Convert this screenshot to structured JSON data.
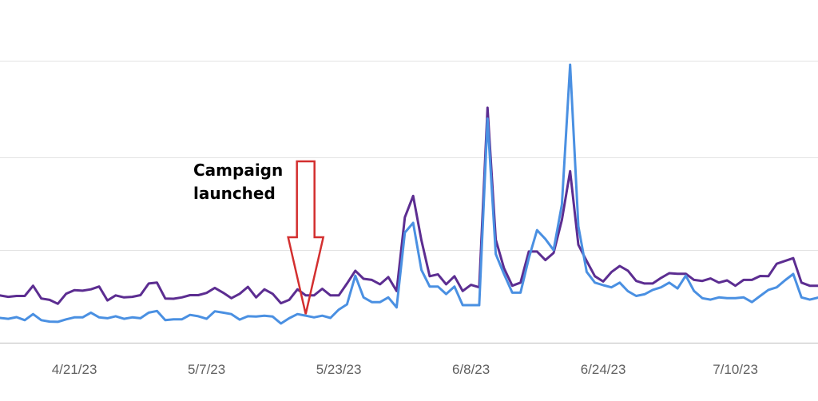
{
  "chart_data": {
    "type": "line",
    "title": "",
    "xlabel": "",
    "ylabel": "",
    "grid": true,
    "legend": "none",
    "x_ticks": [
      "4/21/23",
      "5/7/23",
      "5/23/23",
      "6/8/23",
      "6/24/23",
      "7/10/23"
    ],
    "x_tick_indices": [
      9,
      25,
      41,
      57,
      73,
      89
    ],
    "ylim": [
      0,
      100
    ],
    "annotation": {
      "lines": [
        "Campaign",
        "launched"
      ],
      "at_index": 37
    },
    "series": [
      {
        "color": "#5c2d91",
        "values": [
          17,
          16.5,
          16.8,
          16.8,
          20.5,
          15.9,
          15.4,
          14,
          17.6,
          18.9,
          18.7,
          19.2,
          20.2,
          15.2,
          17,
          16.3,
          16.5,
          17.1,
          21.3,
          21.6,
          15.9,
          15.8,
          16.3,
          17.1,
          17.1,
          17.9,
          19.7,
          18,
          16,
          17.6,
          20.1,
          16.3,
          19.2,
          17.6,
          14.2,
          15.4,
          19.2,
          17,
          17,
          19.4,
          17,
          17,
          21.3,
          25.9,
          23,
          22.6,
          21,
          23.6,
          18.6,
          45.1,
          52.8,
          36.9,
          23.9,
          24.6,
          21,
          23.9,
          18.6,
          20.8,
          19.9,
          84.5,
          37.1,
          26.8,
          20.5,
          21.6,
          32.8,
          32.8,
          29.7,
          32.3,
          44.2,
          61.7,
          35.2,
          29.4,
          23.9,
          22,
          25.4,
          27.6,
          25.9,
          22.2,
          21.3,
          21.3,
          23.3,
          25,
          24.8,
          24.8,
          22.6,
          22.2,
          23.1,
          21.6,
          22.4,
          20.5,
          22.6,
          22.6,
          24,
          23.9,
          28.4,
          29.4,
          30.4,
          21.6,
          20.5,
          20.5
        ]
      },
      {
        "color": "#4a90e2",
        "values": [
          8.9,
          8.6,
          9.2,
          8.1,
          10.3,
          8.1,
          7.6,
          7.5,
          8.4,
          9.1,
          9.1,
          10.8,
          9.1,
          8.8,
          9.5,
          8.6,
          9.1,
          8.8,
          10.8,
          11.4,
          8.1,
          8.4,
          8.4,
          10,
          9.5,
          8.6,
          11.3,
          10.8,
          10.3,
          8.3,
          9.5,
          9.4,
          9.7,
          9.4,
          6.9,
          8.8,
          10.3,
          9.7,
          9.1,
          9.7,
          8.9,
          11.9,
          13.8,
          24.1,
          16.3,
          14.6,
          14.6,
          16.3,
          12.7,
          39.6,
          43.1,
          26.2,
          20.2,
          20.2,
          17.5,
          20.2,
          13.5,
          13.5,
          13.5,
          80.6,
          31.9,
          24.7,
          18,
          18,
          30.4,
          40.5,
          37.3,
          33.3,
          49.7,
          100,
          41.9,
          25.5,
          21.6,
          20.7,
          19.9,
          21.6,
          18.5,
          16.8,
          17.4,
          19,
          19.9,
          21.6,
          19.5,
          24.1,
          18.6,
          16,
          15.5,
          16.3,
          16,
          16,
          16.3,
          14.6,
          16.8,
          19,
          19.9,
          22.4,
          24.7,
          16.3,
          15.5,
          16.2
        ]
      }
    ]
  }
}
